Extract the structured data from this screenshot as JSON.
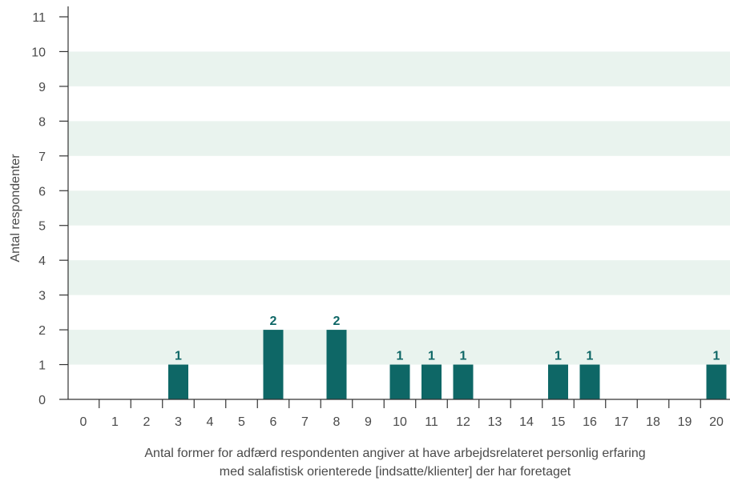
{
  "chart_data": {
    "type": "bar",
    "title": "",
    "xlabel": "Antal former for adfærd respondenten angiver at have arbejdsrelateret personlig erfaring",
    "xlabel_line2": "med salafistisk orienterede [indsatte/klienter] der har foretaget",
    "ylabel": "Antal respondenter",
    "categories": [
      "0",
      "1",
      "2",
      "3",
      "4",
      "5",
      "6",
      "7",
      "8",
      "9",
      "10",
      "11",
      "12",
      "13",
      "14",
      "15",
      "16",
      "17",
      "18",
      "19",
      "20"
    ],
    "values": [
      0,
      0,
      0,
      1,
      0,
      0,
      2,
      0,
      2,
      0,
      1,
      1,
      1,
      0,
      0,
      1,
      1,
      0,
      0,
      0,
      1
    ],
    "ylim": [
      0,
      11
    ],
    "yticks": [
      "0",
      "1",
      "2",
      "3",
      "4",
      "5",
      "6",
      "7",
      "8",
      "9",
      "10",
      "11"
    ],
    "grid": "alternating horizontal bands",
    "legend": "none",
    "colors": {
      "bar": "#0e6766",
      "data_label": "#0e6766",
      "band": "#e9f3ee",
      "axis": "#333333",
      "text": "#4a4a4a"
    }
  }
}
